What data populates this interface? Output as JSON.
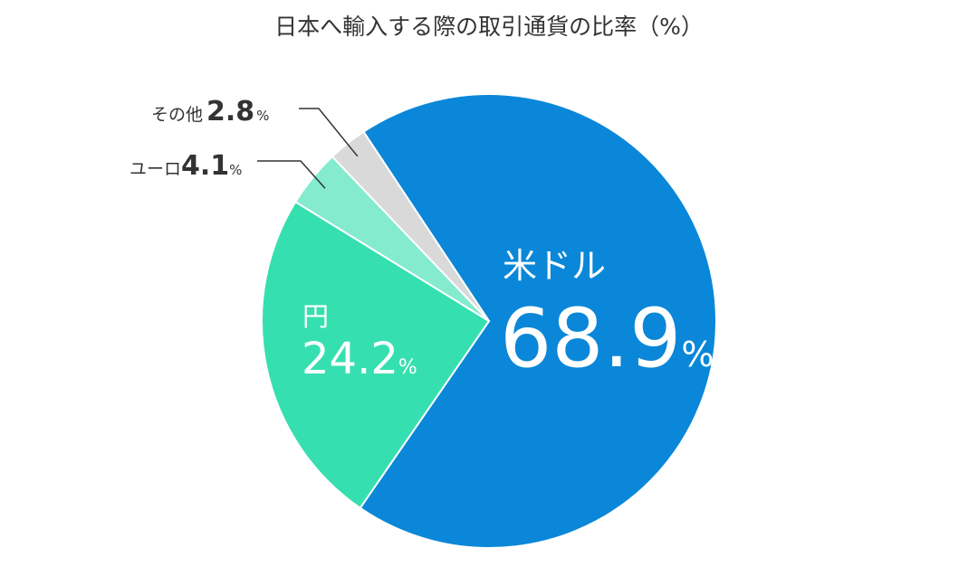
{
  "chart_data": {
    "type": "pie",
    "title": "日本へ輸入する際の取引通貨の比率（%）",
    "unit": "%",
    "slices": [
      {
        "name": "米ドル",
        "value": 68.9,
        "color": "#0a87d8"
      },
      {
        "name": "円",
        "value": 24.2,
        "color": "#36dfb0"
      },
      {
        "name": "ユーロ",
        "value": 4.1,
        "color": "#84ebce"
      },
      {
        "name": "その他",
        "value": 2.8,
        "color": "#d9d9d9"
      }
    ]
  }
}
